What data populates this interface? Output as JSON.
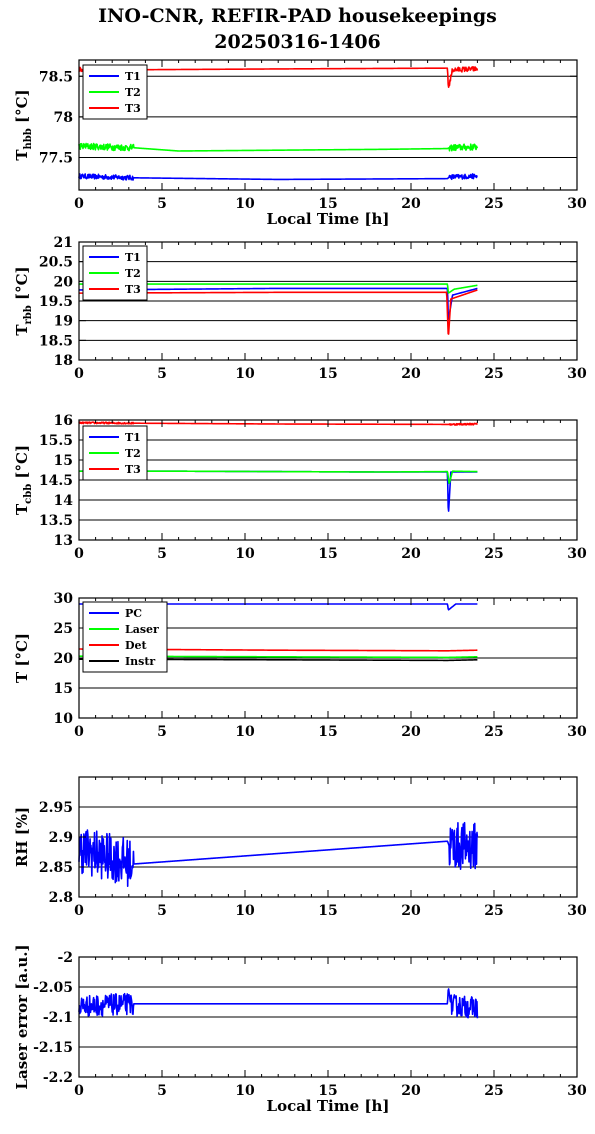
{
  "title_line1": "INO-CNR, REFIR-PAD housekeepings",
  "title_line2": "20250316-1406",
  "colors": {
    "T1": "#0000ff",
    "T2": "#00ff00",
    "T3": "#ff0000",
    "PC": "#0000ff",
    "Laser": "#00ff00",
    "Det": "#ff0000",
    "Instr": "#000000"
  },
  "chart_data": [
    {
      "type": "line",
      "ylabel_main": "T",
      "ylabel_sub": "hbb",
      "ylabel_unit": "[°C]",
      "xlabel": "Local Time [h]",
      "xlim": [
        0,
        30
      ],
      "xticks": [
        0,
        5,
        10,
        15,
        20,
        25,
        30
      ],
      "ylim": [
        77.1,
        78.7
      ],
      "yticks": [
        77.5,
        78,
        78.5
      ],
      "grid": true,
      "legend": "top-left",
      "series": [
        {
          "name": "T1",
          "color": "#0000ff",
          "noisy_segments": [
            [
              0,
              3.3
            ],
            [
              22.3,
              24
            ]
          ],
          "noise": 0.03,
          "x": [
            0,
            3.3,
            12,
            22.2,
            22.3,
            24
          ],
          "y": [
            77.27,
            77.25,
            77.23,
            77.24,
            77.26,
            77.27
          ]
        },
        {
          "name": "T2",
          "color": "#00ff00",
          "noisy_segments": [
            [
              0,
              3.3
            ],
            [
              22.3,
              24
            ]
          ],
          "noise": 0.04,
          "x": [
            0,
            3.3,
            6,
            18,
            22.2,
            22.3,
            24
          ],
          "y": [
            77.64,
            77.62,
            77.58,
            77.6,
            77.61,
            77.62,
            77.63
          ]
        },
        {
          "name": "T3",
          "color": "#ff0000",
          "noisy_segments": [
            [
              0,
              3.3
            ],
            [
              22.3,
              24
            ]
          ],
          "noise": 0.03,
          "x": [
            0,
            3.3,
            12,
            22.2,
            22.25,
            22.5,
            24
          ],
          "y": [
            78.58,
            78.58,
            78.59,
            78.6,
            78.35,
            78.58,
            78.59
          ]
        }
      ]
    },
    {
      "type": "line",
      "ylabel_main": "T",
      "ylabel_sub": "rbb",
      "ylabel_unit": "[°C]",
      "xlabel": "",
      "xlim": [
        0,
        30
      ],
      "xticks": [
        0,
        5,
        10,
        15,
        20,
        25,
        30
      ],
      "ylim": [
        18,
        21
      ],
      "yticks": [
        18,
        18.5,
        19,
        19.5,
        20,
        20.5,
        21
      ],
      "grid": true,
      "legend": "top-left",
      "series": [
        {
          "name": "T1",
          "color": "#0000ff",
          "noisy_segments": [],
          "noise": 0,
          "x": [
            0,
            12,
            22.2,
            22.25,
            22.5,
            24
          ],
          "y": [
            19.78,
            19.82,
            19.82,
            19.0,
            19.65,
            19.82
          ]
        },
        {
          "name": "T2",
          "color": "#00ff00",
          "noisy_segments": [],
          "noise": 0,
          "x": [
            0,
            12,
            22.2,
            22.25,
            22.6,
            24
          ],
          "y": [
            19.93,
            19.93,
            19.93,
            19.7,
            19.8,
            19.9
          ]
        },
        {
          "name": "T3",
          "color": "#ff0000",
          "noisy_segments": [],
          "noise": 0,
          "x": [
            0,
            12,
            22.15,
            22.25,
            22.4,
            24
          ],
          "y": [
            19.7,
            19.72,
            19.72,
            18.55,
            19.55,
            19.78
          ]
        }
      ]
    },
    {
      "type": "line",
      "ylabel_main": "T",
      "ylabel_sub": "cbb",
      "ylabel_unit": "[°C]",
      "xlabel": "",
      "xlim": [
        0,
        30
      ],
      "xticks": [
        0,
        5,
        10,
        15,
        20,
        25,
        30
      ],
      "ylim": [
        13,
        16
      ],
      "yticks": [
        13,
        13.5,
        14,
        14.5,
        15,
        15.5,
        16
      ],
      "grid": true,
      "legend": "top-left",
      "series": [
        {
          "name": "T1",
          "color": "#0000ff",
          "noisy_segments": [],
          "noise": 0,
          "x": [
            0,
            6,
            18,
            22.2,
            22.25,
            22.4,
            24
          ],
          "y": [
            14.72,
            14.72,
            14.7,
            14.7,
            13.6,
            14.7,
            14.7
          ]
        },
        {
          "name": "T2",
          "color": "#00ff00",
          "noisy_segments": [],
          "noise": 0,
          "x": [
            0,
            6,
            18,
            22.2,
            22.3,
            22.5,
            24
          ],
          "y": [
            14.72,
            14.72,
            14.7,
            14.71,
            14.4,
            14.72,
            14.71
          ]
        },
        {
          "name": "T3",
          "color": "#ff0000",
          "noisy_segments": [
            [
              0,
              3.3
            ],
            [
              22.3,
              24
            ]
          ],
          "noise": 0.02,
          "x": [
            0,
            3.3,
            12,
            22.2,
            24
          ],
          "y": [
            15.93,
            15.92,
            15.9,
            15.89,
            15.9
          ]
        }
      ]
    },
    {
      "type": "line",
      "ylabel_main": "T",
      "ylabel_sub": "",
      "ylabel_unit": "[°C]",
      "xlabel": "",
      "xlim": [
        0,
        30
      ],
      "xticks": [
        0,
        5,
        10,
        15,
        20,
        25,
        30
      ],
      "ylim": [
        10,
        30
      ],
      "yticks": [
        10,
        15,
        20,
        25,
        30
      ],
      "grid": true,
      "legend": "top-left",
      "series": [
        {
          "name": "PC",
          "color": "#0000ff",
          "noisy_segments": [],
          "noise": 0,
          "x": [
            0,
            12,
            22.2,
            22.25,
            22.7,
            24
          ],
          "y": [
            29.0,
            29.0,
            29.0,
            28.0,
            29.0,
            29.0
          ]
        },
        {
          "name": "Laser",
          "color": "#00ff00",
          "noisy_segments": [],
          "noise": 0,
          "x": [
            0,
            12,
            22.2,
            24
          ],
          "y": [
            20.3,
            20.2,
            20.1,
            20.2
          ]
        },
        {
          "name": "Det",
          "color": "#ff0000",
          "noisy_segments": [],
          "noise": 0,
          "x": [
            0,
            12,
            22.2,
            24
          ],
          "y": [
            21.5,
            21.3,
            21.2,
            21.3
          ]
        },
        {
          "name": "Instr",
          "color": "#000000",
          "noisy_segments": [],
          "noise": 0,
          "x": [
            0,
            12,
            22.2,
            24
          ],
          "y": [
            19.8,
            19.7,
            19.6,
            19.7
          ]
        }
      ]
    },
    {
      "type": "line",
      "ylabel_main": "RH [%]",
      "ylabel_sub": "",
      "ylabel_unit": "",
      "xlabel": "",
      "xlim": [
        0,
        30
      ],
      "xticks": [
        0,
        5,
        10,
        15,
        20,
        25,
        30
      ],
      "ylim": [
        2.8,
        3.0
      ],
      "yticks": [
        2.8,
        2.85,
        2.9,
        2.95
      ],
      "grid": true,
      "legend": "none",
      "series": [
        {
          "name": "",
          "color": "#0000ff",
          "noisy_segments": [
            [
              0,
              3.3
            ],
            [
              22.3,
              24
            ]
          ],
          "noise": 0.04,
          "x": [
            0,
            3.3,
            22.2,
            22.3,
            24
          ],
          "y": [
            2.88,
            2.855,
            2.893,
            2.885,
            2.885
          ]
        }
      ]
    },
    {
      "type": "line",
      "ylabel_main": "Laser error [a.u.]",
      "ylabel_sub": "",
      "ylabel_unit": "",
      "xlabel": "Local Time [h]",
      "xlim": [
        0,
        30
      ],
      "xticks": [
        0,
        5,
        10,
        15,
        20,
        25,
        30
      ],
      "ylim": [
        -2.2,
        -2.0
      ],
      "yticks": [
        -2.2,
        -2.15,
        -2.1,
        -2.05,
        -2
      ],
      "grid": true,
      "legend": "none",
      "series": [
        {
          "name": "",
          "color": "#0000ff",
          "noisy_segments": [
            [
              0,
              3.3
            ],
            [
              22.4,
              24
            ]
          ],
          "noise": 0.018,
          "x": [
            0,
            3.3,
            22.2,
            22.25,
            22.4,
            24
          ],
          "y": [
            -2.082,
            -2.078,
            -2.078,
            -2.05,
            -2.08,
            -2.085
          ]
        }
      ]
    }
  ]
}
